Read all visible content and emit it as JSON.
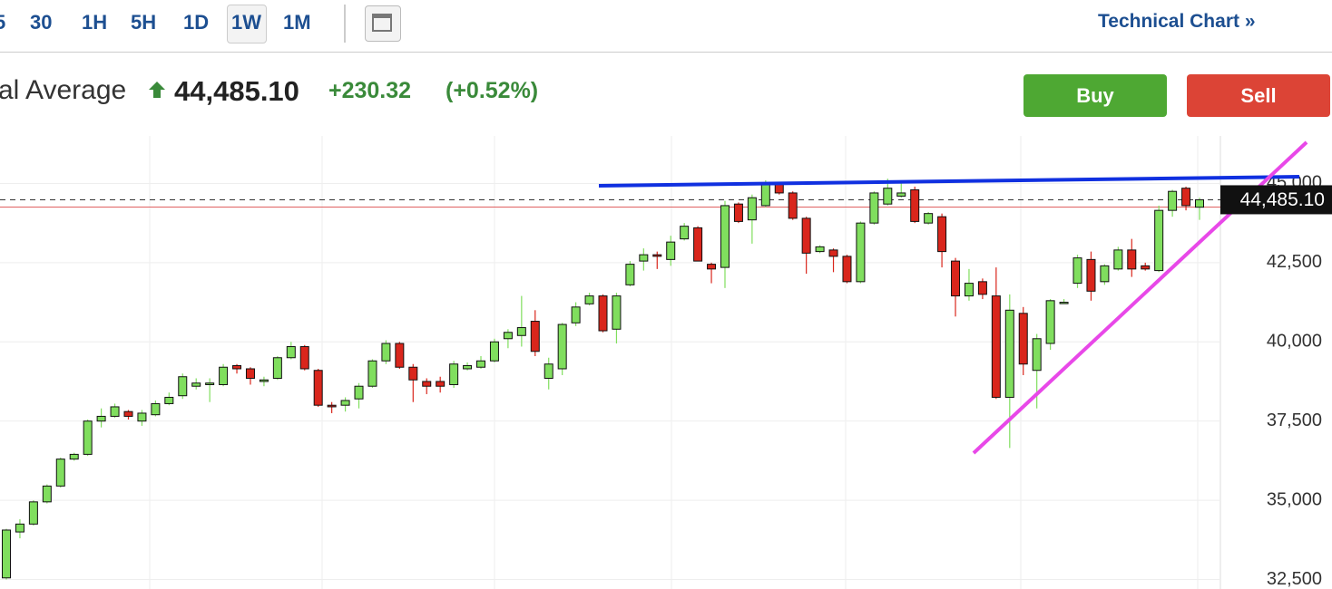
{
  "header": {
    "timeframes": [
      "5",
      "30",
      "1H",
      "5H",
      "1D",
      "1W",
      "1M"
    ],
    "technical_chart_link": "Technical Chart »"
  },
  "quote": {
    "name": "al Average",
    "price": "44,485.10",
    "change": "+230.32",
    "change_percent": "(+0.52%)"
  },
  "actions": {
    "buy": "Buy",
    "sell": "Sell"
  },
  "chart_data": {
    "type": "candlestick",
    "up_color": "#80de5e",
    "down_color": "#d9261c",
    "ylim": [
      32200,
      46500
    ],
    "yticks": [
      {
        "value": 32500,
        "label": "32,500"
      },
      {
        "value": 35000,
        "label": "35,000"
      },
      {
        "value": 37500,
        "label": "37,500"
      },
      {
        "value": 40000,
        "label": "40,000"
      },
      {
        "value": 42500,
        "label": "42,500"
      },
      {
        "value": 45000,
        "label": "45,000"
      }
    ],
    "grid": true,
    "last_price": {
      "value": 44485.1,
      "label": "44,485.10"
    },
    "previous_close": 44254.78,
    "open": [
      32550,
      34000,
      34250,
      34950,
      35450,
      36300,
      36450,
      37500,
      37650,
      37800,
      37500,
      37700,
      38050,
      38300,
      38600,
      38650,
      38650,
      39250,
      39150,
      38750,
      38850,
      39500,
      39850,
      39100,
      38000,
      38000,
      38200,
      38600,
      39400,
      39950,
      39200,
      38750,
      38750,
      38650,
      39150,
      39200,
      39400,
      40100,
      40200,
      40650,
      38850,
      39150,
      40600,
      41200,
      41450,
      40400,
      41800,
      42550,
      42750,
      42600,
      43250,
      43600,
      42450,
      42350,
      44350,
      43850,
      44300,
      45000,
      44700,
      43900,
      42850,
      42900,
      42700,
      41900,
      43750,
      44350,
      44600,
      44800,
      43750,
      43950,
      42550,
      41450,
      41900,
      41450,
      38250,
      40900,
      39100,
      39950,
      41250,
      41850,
      42600,
      41900,
      42300,
      42900,
      42400,
      42250,
      44150,
      44850,
      44250
    ],
    "high": [
      34100,
      34400,
      35000,
      35500,
      36350,
      36500,
      37550,
      37900,
      38050,
      37850,
      37850,
      38150,
      38400,
      39000,
      38850,
      38850,
      39300,
      39300,
      39200,
      38900,
      39550,
      40000,
      39900,
      39150,
      38100,
      38250,
      38700,
      39450,
      40050,
      40000,
      39300,
      38850,
      38900,
      39400,
      39350,
      39550,
      40100,
      40400,
      41450,
      41000,
      39500,
      40600,
      41250,
      41550,
      41500,
      41550,
      42550,
      42950,
      42850,
      43350,
      43750,
      43650,
      42500,
      44450,
      44400,
      44650,
      45100,
      45050,
      44750,
      43950,
      43050,
      42950,
      42750,
      43800,
      44750,
      45150,
      45000,
      44900,
      44100,
      44050,
      42650,
      42300,
      42000,
      42350,
      41500,
      41100,
      40250,
      41350,
      41350,
      42750,
      42850,
      42450,
      43000,
      43250,
      42500,
      44300,
      44800,
      44900,
      44550
    ],
    "low": [
      32500,
      33800,
      34200,
      34900,
      35400,
      36250,
      36400,
      37300,
      37600,
      37550,
      37350,
      37650,
      38000,
      38200,
      38500,
      38100,
      38600,
      39000,
      38650,
      38600,
      38800,
      39450,
      39100,
      37950,
      37750,
      37800,
      37900,
      38550,
      39300,
      39150,
      38100,
      38350,
      38400,
      38550,
      39100,
      39150,
      39350,
      39800,
      39850,
      39550,
      38500,
      38950,
      40500,
      41150,
      40300,
      39950,
      41750,
      42250,
      42300,
      42400,
      43200,
      42550,
      41850,
      41700,
      43750,
      43100,
      44250,
      44650,
      43850,
      42150,
      42800,
      42200,
      41850,
      41850,
      43700,
      44300,
      44550,
      43750,
      43700,
      42350,
      40800,
      41300,
      41350,
      38200,
      36650,
      38950,
      37900,
      39750,
      41200,
      41700,
      41300,
      41800,
      42250,
      42050,
      42250,
      42200,
      43950,
      44150,
      43850
    ],
    "close": [
      34060,
      34250,
      34950,
      35450,
      36300,
      36450,
      37500,
      37650,
      37950,
      37650,
      37750,
      38050,
      38250,
      38900,
      38700,
      38700,
      39200,
      39150,
      38850,
      38800,
      39500,
      39850,
      39150,
      38000,
      37950,
      38150,
      38600,
      39400,
      39950,
      39200,
      38800,
      38600,
      38600,
      39300,
      39250,
      39400,
      40000,
      40300,
      40450,
      39700,
      39300,
      40550,
      41100,
      41450,
      40350,
      41450,
      42450,
      42750,
      42700,
      43150,
      43650,
      42550,
      42300,
      44300,
      43800,
      44550,
      45000,
      44700,
      43900,
      42800,
      43000,
      42700,
      41900,
      43750,
      44700,
      44850,
      44700,
      43800,
      44050,
      42850,
      41450,
      41850,
      41500,
      38250,
      41000,
      39300,
      40100,
      41300,
      41250,
      42650,
      41600,
      42400,
      42900,
      42300,
      42300,
      44150,
      44750,
      44300,
      44485.1
    ]
  }
}
